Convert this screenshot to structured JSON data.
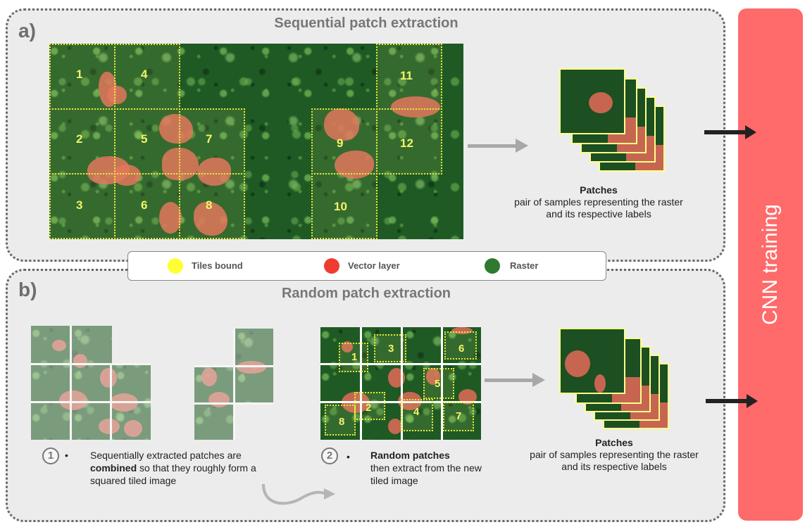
{
  "panel_a": {
    "letter": "a)",
    "title": "Sequential patch extraction",
    "tiles": [
      "1",
      "2",
      "3",
      "4",
      "5",
      "6",
      "7",
      "8",
      "9",
      "10",
      "11",
      "12"
    ],
    "patches_title": "Patches",
    "patches_desc": "pair of samples representing the raster and its respective labels"
  },
  "legend": {
    "items": [
      {
        "label": "Tiles bound",
        "color": "#ffff33"
      },
      {
        "label": "Vector layer",
        "color": "#f03b32"
      },
      {
        "label": "Raster",
        "color": "#2f7a2f"
      }
    ]
  },
  "panel_b": {
    "letter": "b)",
    "title": "Random patch extraction",
    "random_tiles": [
      "1",
      "2",
      "3",
      "4",
      "5",
      "6",
      "7",
      "8"
    ],
    "step1_num": "1",
    "step1_pre": "Sequentially extracted patches are",
    "step1_bold": "combined",
    "step1_post": "so that they roughly form a squared tiled image",
    "step2_num": "2",
    "step2_bold": "Random patches",
    "step2_text": "then extract from the new tiled image",
    "patches_title": "Patches",
    "patches_desc": "pair of samples representing the raster and its respective labels"
  },
  "cnn": {
    "label": "CNN training",
    "color": "#ff6a6a"
  }
}
